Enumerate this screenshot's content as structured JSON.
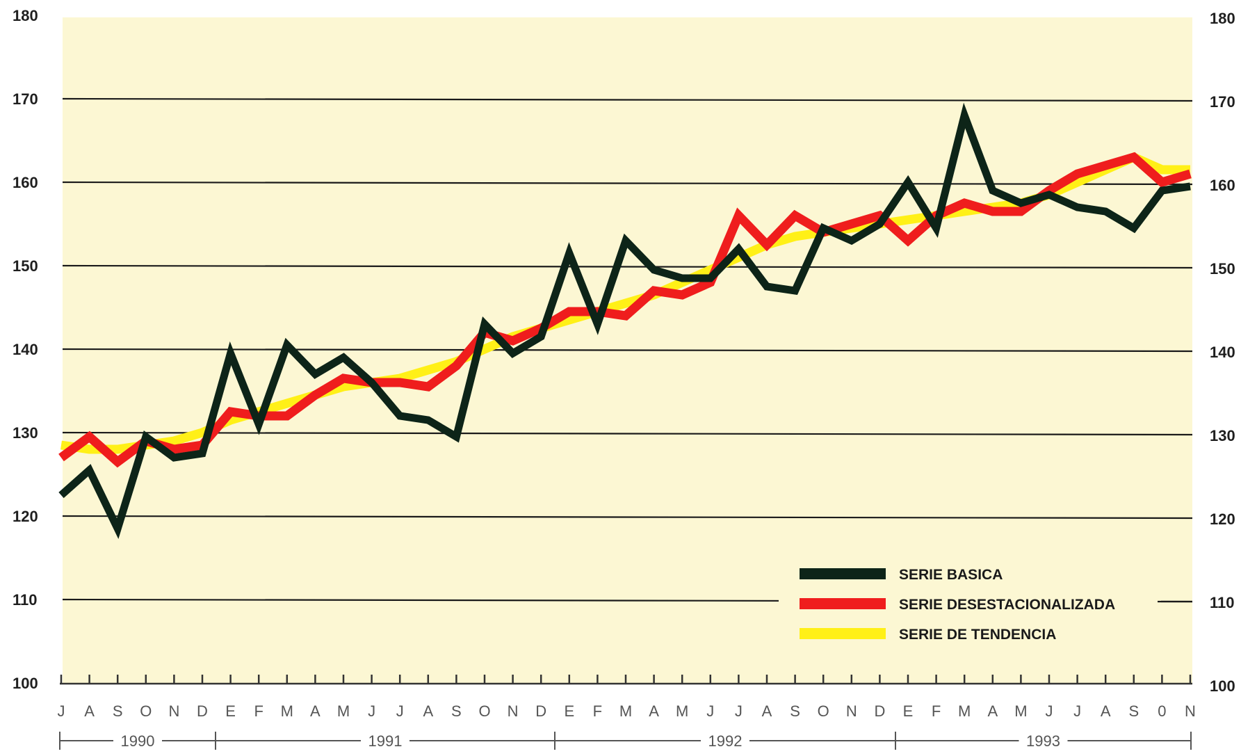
{
  "colors": {
    "background": "#fcf7d3",
    "gridline": "#1a1a1a",
    "serie_basica": "#0d2418",
    "serie_desestacionalizada": "#ef1d1d",
    "serie_tendencia": "#fff017"
  },
  "chart_data": {
    "type": "line",
    "title": "",
    "xlabel": "",
    "ylabel": "",
    "ylim": [
      100,
      180
    ],
    "yticks": [
      "100",
      "110",
      "120",
      "130",
      "140",
      "150",
      "160",
      "170",
      "180"
    ],
    "grid": true,
    "legend_position": "bottom-right",
    "x": [
      "J",
      "A",
      "S",
      "O",
      "N",
      "D",
      "E",
      "F",
      "M",
      "A",
      "M",
      "J",
      "J",
      "A",
      "S",
      "O",
      "N",
      "D",
      "E",
      "F",
      "M",
      "A",
      "M",
      "J",
      "J",
      "A",
      "S",
      "O",
      "N",
      "D",
      "E",
      "F",
      "M",
      "A",
      "M",
      "J",
      "J",
      "A",
      "S",
      "0",
      "N"
    ],
    "years": [
      {
        "label": "1990",
        "start": 0,
        "end": 5
      },
      {
        "label": "1991",
        "start": 6,
        "end": 17
      },
      {
        "label": "1992",
        "start": 18,
        "end": 29
      },
      {
        "label": "1993",
        "start": 30,
        "end": 40
      }
    ],
    "series": [
      {
        "name": "SERIE BASICA",
        "color": "#0d2418",
        "values": [
          122.5,
          125.5,
          118.5,
          129.5,
          127,
          127.5,
          139.5,
          131,
          140.5,
          137,
          139,
          136,
          132,
          131.5,
          129.5,
          143,
          139.5,
          141.5,
          151.5,
          143,
          153,
          149.5,
          148.5,
          148.5,
          152,
          147.5,
          147,
          154.5,
          153,
          155,
          160,
          154.5,
          168,
          159,
          157.5,
          158.5,
          157,
          156.5,
          154.5,
          159,
          159.5
        ]
      },
      {
        "name": "SERIE DESESTACIONALIZADA",
        "color": "#ef1d1d",
        "values": [
          127,
          129.5,
          126.5,
          129,
          128,
          128.5,
          132.5,
          132,
          132,
          134.5,
          136.5,
          136,
          136,
          135.5,
          138,
          142,
          141,
          142.5,
          144.5,
          144.5,
          144,
          147,
          146.5,
          148,
          156,
          152.5,
          156,
          154,
          155,
          156,
          153,
          156,
          157.5,
          156.5,
          156.5,
          159,
          161,
          162,
          163,
          160,
          161
        ]
      },
      {
        "name": "SERIE DE TENDENCIA",
        "color": "#fff017",
        "values": [
          128.5,
          128,
          128,
          128.5,
          129,
          130,
          131.5,
          132.5,
          133.5,
          134.5,
          135.5,
          136,
          136.5,
          137.5,
          138.5,
          140,
          141.5,
          142.5,
          143.5,
          144.5,
          145.5,
          146.5,
          148,
          149.5,
          151,
          152.5,
          153.5,
          154,
          154.5,
          155,
          155.5,
          156,
          156.5,
          157,
          157.5,
          158.5,
          160,
          161.5,
          163,
          161.5,
          161.5
        ]
      }
    ]
  }
}
